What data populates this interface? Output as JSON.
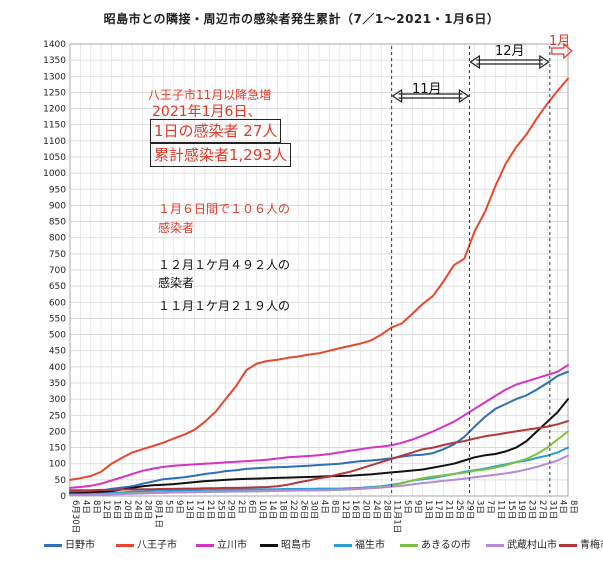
{
  "chart_data": {
    "type": "line",
    "title": "昭島市との隣接・周辺市の感染者発生累計（7／1〜2021・1月6日）",
    "ylim": [
      0,
      1400
    ],
    "yticks": [
      0,
      50,
      100,
      150,
      200,
      250,
      300,
      350,
      400,
      450,
      500,
      550,
      600,
      650,
      700,
      750,
      800,
      850,
      900,
      950,
      1000,
      1050,
      1100,
      1150,
      1200,
      1250,
      1300,
      1350,
      1400
    ],
    "grid": true,
    "legend_position": "bottom",
    "x_tick_labels": [
      "6月30日",
      "4日",
      "8日",
      "12日",
      "16日",
      "20日",
      "24日",
      "28日",
      "8月1日",
      "5日",
      "9日",
      "13日",
      "17日",
      "21日",
      "25日",
      "29日",
      "2日",
      "6日",
      "10日",
      "14日",
      "18日",
      "22日",
      "26日",
      "30日",
      "4日",
      "8日",
      "12日",
      "16日",
      "20日",
      "24日",
      "28日",
      "11月1日",
      "5日",
      "9日",
      "13日",
      "17日",
      "21日",
      "25日",
      "29日",
      "3日",
      "7日",
      "11日",
      "15日",
      "19日",
      "23日",
      "27日",
      "31日",
      "4日",
      "8日"
    ],
    "x_dates": [
      "2020-06-30",
      "2020-07-04",
      "2020-07-08",
      "2020-07-12",
      "2020-07-16",
      "2020-07-20",
      "2020-07-24",
      "2020-07-28",
      "2020-08-01",
      "2020-08-05",
      "2020-08-09",
      "2020-08-13",
      "2020-08-17",
      "2020-08-21",
      "2020-08-25",
      "2020-08-29",
      "2020-09-02",
      "2020-09-06",
      "2020-09-10",
      "2020-09-14",
      "2020-09-18",
      "2020-09-22",
      "2020-09-26",
      "2020-09-30",
      "2020-10-04",
      "2020-10-08",
      "2020-10-12",
      "2020-10-16",
      "2020-10-20",
      "2020-10-24",
      "2020-10-28",
      "2020-11-01",
      "2020-11-05",
      "2020-11-09",
      "2020-11-13",
      "2020-11-17",
      "2020-11-21",
      "2020-11-25",
      "2020-11-29",
      "2020-12-03",
      "2020-12-07",
      "2020-12-11",
      "2020-12-15",
      "2020-12-19",
      "2020-12-23",
      "2020-12-27",
      "2020-12-31",
      "2021-01-04",
      "2021-01-08"
    ],
    "series": [
      {
        "name": "日野市",
        "color": "#2f6fb5",
        "values": [
          12,
          14,
          15,
          17,
          22,
          26,
          30,
          38,
          45,
          52,
          55,
          58,
          63,
          68,
          72,
          77,
          80,
          84,
          86,
          88,
          89,
          90,
          92,
          94,
          96,
          98,
          100,
          104,
          108,
          110,
          113,
          117,
          122,
          126,
          128,
          133,
          145,
          160,
          183,
          215,
          245,
          270,
          285,
          300,
          312,
          330,
          350,
          372,
          385
        ]
      },
      {
        "name": "八王子市",
        "color": "#e8472f",
        "values": [
          50,
          55,
          62,
          75,
          100,
          118,
          135,
          145,
          155,
          165,
          178,
          190,
          205,
          230,
          260,
          300,
          340,
          390,
          410,
          418,
          422,
          428,
          432,
          438,
          442,
          450,
          458,
          465,
          472,
          482,
          500,
          522,
          535,
          565,
          595,
          620,
          665,
          715,
          735,
          820,
          880,
          960,
          1030,
          1080,
          1120,
          1170,
          1215,
          1255,
          1293
        ]
      },
      {
        "name": "立川市",
        "color": "#d633c0",
        "values": [
          25,
          28,
          32,
          38,
          48,
          58,
          68,
          78,
          85,
          90,
          94,
          96,
          98,
          100,
          102,
          104,
          106,
          108,
          110,
          112,
          116,
          120,
          122,
          124,
          126,
          130,
          135,
          140,
          145,
          150,
          153,
          157,
          165,
          175,
          187,
          200,
          215,
          230,
          250,
          270,
          290,
          310,
          330,
          345,
          355,
          365,
          375,
          385,
          405
        ]
      },
      {
        "name": "昭島市",
        "color": "#111111",
        "values": [
          8,
          9,
          10,
          12,
          15,
          20,
          25,
          30,
          33,
          35,
          37,
          40,
          43,
          46,
          48,
          50,
          52,
          53,
          54,
          55,
          56,
          57,
          58,
          59,
          60,
          61,
          62,
          63,
          65,
          67,
          70,
          73,
          76,
          79,
          82,
          88,
          94,
          100,
          110,
          120,
          126,
          130,
          138,
          150,
          170,
          200,
          230,
          260,
          300
        ]
      },
      {
        "name": "福生市",
        "color": "#2a9fd6",
        "values": [
          5,
          5,
          6,
          7,
          9,
          11,
          13,
          15,
          16,
          17,
          17,
          18,
          18,
          19,
          19,
          20,
          20,
          20,
          21,
          21,
          21,
          22,
          22,
          22,
          23,
          23,
          23,
          24,
          25,
          28,
          30,
          35,
          40,
          48,
          52,
          56,
          62,
          68,
          75,
          80,
          85,
          92,
          98,
          105,
          110,
          118,
          125,
          135,
          150
        ]
      },
      {
        "name": "あきるの市",
        "color": "#7dc142",
        "values": [
          3,
          3,
          4,
          5,
          6,
          7,
          8,
          9,
          10,
          10,
          11,
          11,
          12,
          12,
          13,
          13,
          14,
          14,
          15,
          15,
          16,
          16,
          17,
          17,
          18,
          18,
          19,
          20,
          22,
          25,
          28,
          32,
          40,
          48,
          55,
          60,
          64,
          68,
          72,
          78,
          82,
          88,
          95,
          105,
          115,
          130,
          150,
          175,
          200
        ]
      },
      {
        "name": "武蔵村山市",
        "color": "#b58ad6",
        "values": [
          3,
          3,
          4,
          4,
          5,
          6,
          7,
          8,
          9,
          10,
          11,
          12,
          12,
          13,
          13,
          14,
          14,
          15,
          15,
          16,
          16,
          17,
          17,
          18,
          18,
          19,
          20,
          21,
          22,
          24,
          26,
          29,
          32,
          36,
          40,
          43,
          47,
          50,
          54,
          58,
          62,
          66,
          70,
          75,
          82,
          90,
          100,
          110,
          125
        ]
      },
      {
        "name": "青梅市",
        "color": "#b2383b",
        "values": [
          18,
          18,
          18,
          19,
          19,
          20,
          20,
          21,
          21,
          22,
          22,
          23,
          23,
          24,
          24,
          25,
          25,
          26,
          27,
          28,
          30,
          35,
          42,
          48,
          55,
          60,
          68,
          75,
          85,
          95,
          105,
          115,
          125,
          135,
          145,
          150,
          158,
          165,
          170,
          178,
          185,
          190,
          195,
          200,
          205,
          210,
          215,
          222,
          232
        ]
      }
    ],
    "annotations": {
      "hachioji_note1": "八王子市11月以降急増",
      "hachioji_note2": "2021年1月6日、",
      "daily_cases": "1日の感染者  27人",
      "cumulative_cases": "累計感染者1,293人",
      "jan_note": "１月６日間で１０６人の",
      "jan_note2": "感染者",
      "dec_note": "１２月１ケ月４９２人の",
      "dec_note2": "感染者",
      "nov_note": "１１月１ケ月２１９人の",
      "month_nov": "11月",
      "month_dec": "12月",
      "month_jan": "1月"
    }
  }
}
